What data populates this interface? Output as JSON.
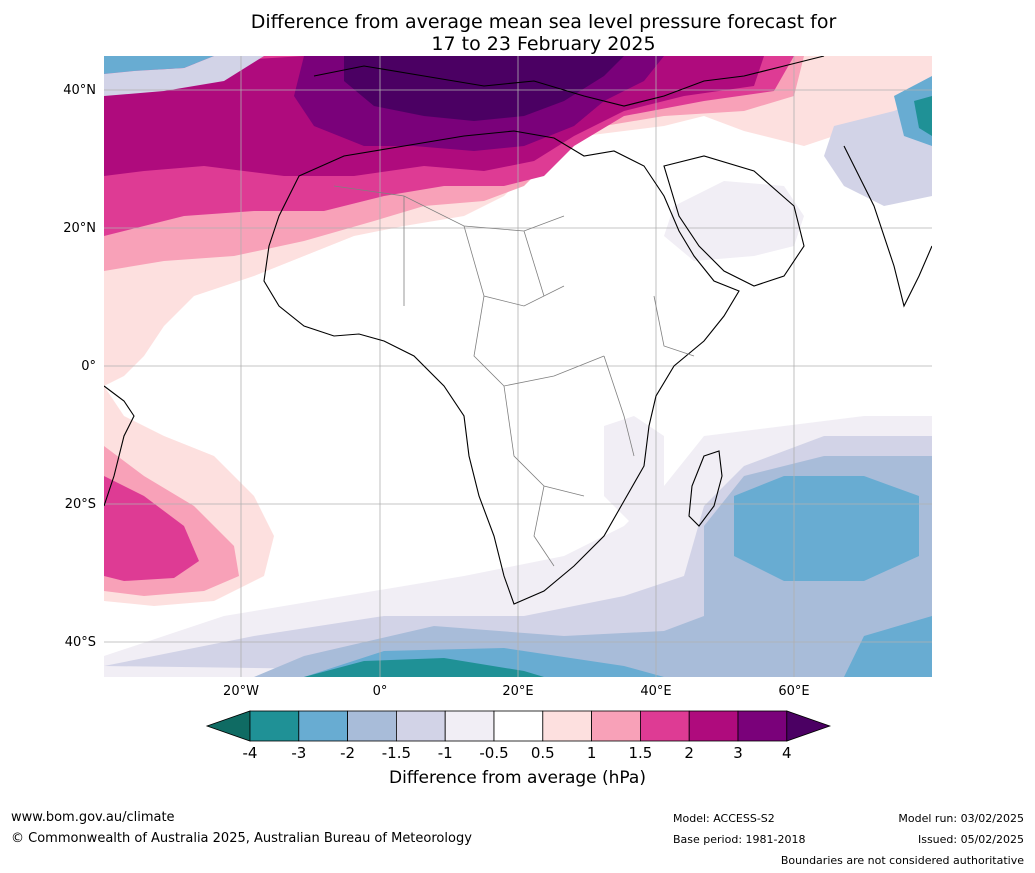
{
  "title_line1": "Difference from average mean sea level pressure forecast for",
  "title_line2": "17 to 23 February 2025",
  "lat_labels": [
    "40°N",
    "20°N",
    "0°",
    "20°S",
    "40°S"
  ],
  "lon_labels": [
    "20°W",
    "0°",
    "20°E",
    "40°E",
    "60°E"
  ],
  "colorbar": {
    "ticks": [
      "-4",
      "-3",
      "-2",
      "-1.5",
      "-1",
      "-0.5",
      "0.5",
      "1",
      "1.5",
      "2",
      "3",
      "4"
    ],
    "colors": [
      "#0f6b63",
      "#1f9196",
      "#68acd2",
      "#a8bcd9",
      "#d2d3e7",
      "#f1eef5",
      "#ffffff",
      "#fde0df",
      "#f8a1b8",
      "#de3b94",
      "#af0b7d",
      "#7a017a",
      "#4b0063"
    ],
    "label": "Difference from average (hPa)"
  },
  "footer": {
    "website": "www.bom.gov.au/climate",
    "copyright": "© Commonwealth of Australia 2025, Australian Bureau of Meteorology",
    "model": "Model: ACCESS-S2",
    "base_period": "Base period: 1981-2018",
    "model_run": "Model run: 03/02/2025",
    "issued": "Issued: 05/02/2025",
    "boundaries_note": "Boundaries are not considered authoritative"
  }
}
